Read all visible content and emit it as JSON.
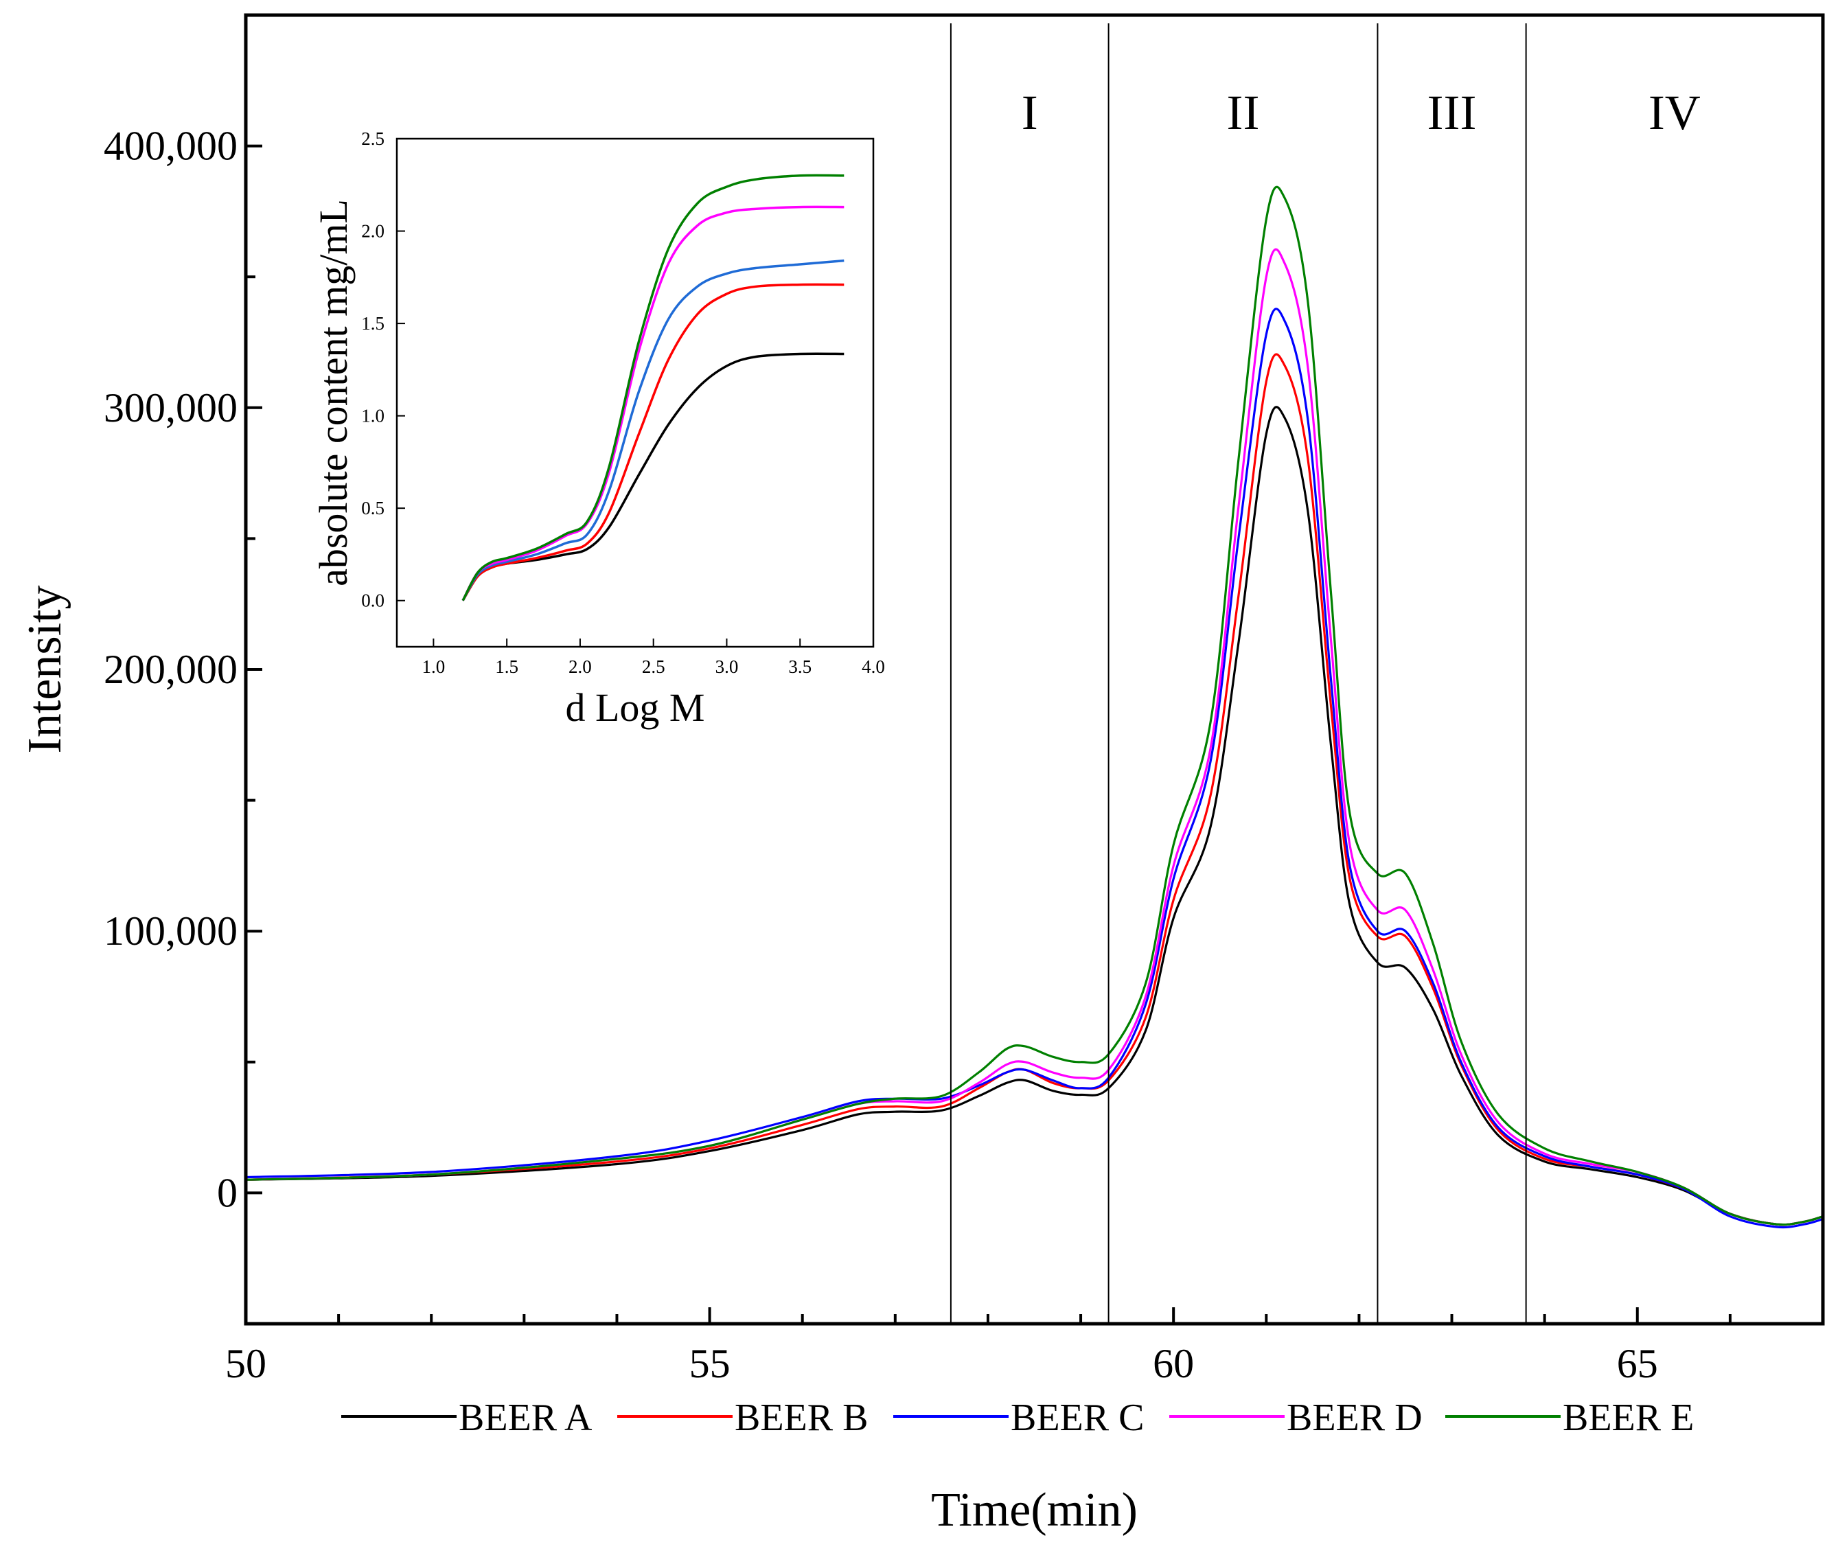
{
  "chart_data": [
    {
      "type": "line",
      "role": "main",
      "xlabel": "Time(min)",
      "ylabel": "Intensity",
      "xlim": [
        50,
        67
      ],
      "ylim": [
        -50000,
        450000
      ],
      "x_ticks": [
        50,
        55,
        60,
        65
      ],
      "x_tick_labels": [
        "50",
        "55",
        "60",
        "65"
      ],
      "y_ticks": [
        0,
        100000,
        200000,
        300000,
        400000
      ],
      "y_tick_labels": [
        "0",
        "100,000",
        "200,000",
        "300,000",
        "400,000"
      ],
      "grid": false,
      "legend_position": "bottom",
      "regions": [
        {
          "label": "I",
          "x_from": 57.6,
          "x_to": 59.3
        },
        {
          "label": "II",
          "x_from": 59.3,
          "x_to": 62.2
        },
        {
          "label": "III",
          "x_from": 62.2,
          "x_to": 63.8
        },
        {
          "label": "IV",
          "x_from": 63.8,
          "x_to": 67
        }
      ],
      "region_dividers": [
        57.6,
        59.3,
        62.2,
        63.8
      ],
      "series": [
        {
          "name": "BEER A",
          "color": "#000000",
          "x": [
            50,
            52,
            54,
            55,
            56,
            56.6,
            57.0,
            57.5,
            57.9,
            58.2,
            58.4,
            58.7,
            59.0,
            59.3,
            59.7,
            60.0,
            60.4,
            60.7,
            61.0,
            61.2,
            61.45,
            61.7,
            61.9,
            62.2,
            62.5,
            62.8,
            63.1,
            63.5,
            64.0,
            64.5,
            65.0,
            65.5,
            66.0,
            66.5,
            66.8,
            67.0
          ],
          "y": [
            5000,
            6500,
            11000,
            16000,
            24000,
            30000,
            31000,
            31500,
            37000,
            42000,
            43000,
            39000,
            37500,
            40000,
            62000,
            105000,
            140000,
            210000,
            290000,
            296000,
            260000,
            170000,
            110000,
            88000,
            86000,
            70000,
            45000,
            22000,
            12000,
            9000,
            6000,
            1000,
            -8000,
            -12000,
            -11000,
            -9000
          ]
        },
        {
          "name": "BEER B",
          "color": "#ff0000",
          "x": [
            50,
            52,
            54,
            55,
            56,
            56.6,
            57.0,
            57.5,
            57.9,
            58.2,
            58.4,
            58.7,
            59.0,
            59.3,
            59.7,
            60.0,
            60.4,
            60.7,
            61.0,
            61.2,
            61.45,
            61.7,
            61.9,
            62.2,
            62.5,
            62.8,
            63.1,
            63.5,
            64.0,
            64.5,
            65.0,
            65.5,
            66.0,
            66.5,
            66.8,
            67.0
          ],
          "y": [
            5000,
            7000,
            12000,
            17000,
            26000,
            32000,
            33000,
            33000,
            40000,
            46000,
            47000,
            42000,
            40000,
            43000,
            67000,
            112000,
            152000,
            228000,
            310000,
            316000,
            280000,
            185000,
            120000,
            98000,
            98000,
            78000,
            49000,
            24000,
            13000,
            10000,
            7000,
            1500,
            -8000,
            -12000,
            -11000,
            -9000
          ]
        },
        {
          "name": "BEER C",
          "color": "#0000ff",
          "x": [
            50,
            52,
            54,
            55,
            56,
            56.6,
            57.0,
            57.5,
            57.9,
            58.2,
            58.4,
            58.7,
            59.0,
            59.3,
            59.7,
            60.0,
            60.4,
            60.7,
            61.0,
            61.2,
            61.45,
            61.7,
            61.9,
            62.2,
            62.5,
            62.8,
            63.1,
            63.5,
            64.0,
            64.5,
            65.0,
            65.5,
            66.0,
            66.5,
            66.8,
            67.0
          ],
          "y": [
            6000,
            8000,
            14000,
            20000,
            29000,
            35000,
            36000,
            36000,
            41000,
            46000,
            47000,
            43000,
            40000,
            44000,
            72000,
            120000,
            165000,
            250000,
            328000,
            333000,
            295000,
            195000,
            125000,
            100000,
            100000,
            80000,
            50000,
            25000,
            14000,
            10000,
            7000,
            1500,
            -9000,
            -13000,
            -12000,
            -10000
          ]
        },
        {
          "name": "BEER D",
          "color": "#ff00ff",
          "x": [
            50,
            52,
            54,
            55,
            56,
            56.6,
            57.0,
            57.5,
            57.9,
            58.2,
            58.4,
            58.7,
            59.0,
            59.3,
            59.7,
            60.0,
            60.4,
            60.7,
            61.0,
            61.2,
            61.45,
            61.7,
            61.9,
            62.2,
            62.5,
            62.8,
            63.1,
            63.5,
            64.0,
            64.5,
            65.0,
            65.5,
            66.0,
            66.5,
            66.8,
            67.0
          ],
          "y": [
            5000,
            7000,
            13000,
            18000,
            28000,
            34000,
            35000,
            35000,
            42000,
            49000,
            50000,
            46000,
            44000,
            47000,
            75000,
            125000,
            170000,
            262000,
            350000,
            355000,
            315000,
            210000,
            133000,
            108000,
            108000,
            85000,
            53000,
            27000,
            15000,
            11000,
            8000,
            2000,
            -8000,
            -12000,
            -11000,
            -9000
          ]
        },
        {
          "name": "BEER E",
          "color": "#008000",
          "x": [
            50,
            52,
            54,
            55,
            56,
            56.6,
            57.0,
            57.5,
            57.9,
            58.2,
            58.4,
            58.7,
            59.0,
            59.3,
            59.7,
            60.0,
            60.4,
            60.7,
            61.0,
            61.2,
            61.45,
            61.7,
            61.9,
            62.2,
            62.5,
            62.8,
            63.1,
            63.5,
            64.0,
            64.5,
            65.0,
            65.5,
            66.0,
            66.5,
            66.8,
            67.0
          ],
          "y": [
            5000,
            7000,
            13000,
            18000,
            28000,
            34000,
            36000,
            37000,
            46000,
            55000,
            56000,
            52000,
            50000,
            53000,
            80000,
            133000,
            180000,
            280000,
            372000,
            380000,
            340000,
            228000,
            145000,
            122000,
            122000,
            95000,
            58000,
            30000,
            17000,
            12000,
            8000,
            2000,
            -8000,
            -12000,
            -11000,
            -9000
          ]
        }
      ]
    },
    {
      "type": "line",
      "role": "inset",
      "xlabel": "d Log M",
      "ylabel": "absolute content mg/mL",
      "xlim": [
        0.75,
        4.0
      ],
      "ylim": [
        -0.25,
        2.5
      ],
      "x_ticks": [
        1.0,
        1.5,
        2.0,
        2.5,
        3.0,
        3.5,
        4.0
      ],
      "x_tick_labels": [
        "1.0",
        "1.5",
        "2.0",
        "2.5",
        "3.0",
        "3.5",
        "4.0"
      ],
      "y_ticks": [
        0.0,
        0.5,
        1.0,
        1.5,
        2.0,
        2.5
      ],
      "y_tick_labels": [
        "0.0",
        "0.5",
        "1.0",
        "1.5",
        "2.0",
        "2.5"
      ],
      "grid": false,
      "series": [
        {
          "name": "BEER A",
          "color": "#000000",
          "x": [
            1.2,
            1.3,
            1.4,
            1.5,
            1.7,
            1.9,
            2.05,
            2.2,
            2.4,
            2.6,
            2.8,
            3.0,
            3.2,
            3.5,
            3.8
          ],
          "y": [
            0.0,
            0.13,
            0.18,
            0.2,
            0.22,
            0.25,
            0.28,
            0.4,
            0.68,
            0.95,
            1.15,
            1.27,
            1.32,
            1.335,
            1.335
          ]
        },
        {
          "name": "BEER B",
          "color": "#ff0000",
          "x": [
            1.2,
            1.3,
            1.4,
            1.5,
            1.7,
            1.9,
            2.05,
            2.2,
            2.4,
            2.6,
            2.8,
            3.0,
            3.2,
            3.5,
            3.8
          ],
          "y": [
            0.0,
            0.13,
            0.18,
            0.2,
            0.23,
            0.27,
            0.31,
            0.48,
            0.9,
            1.3,
            1.55,
            1.66,
            1.7,
            1.71,
            1.71
          ]
        },
        {
          "name": "BEER C",
          "color": "#1f6bd6",
          "x": [
            1.2,
            1.3,
            1.4,
            1.5,
            1.7,
            1.9,
            2.05,
            2.2,
            2.4,
            2.6,
            2.8,
            3.0,
            3.2,
            3.5,
            3.8
          ],
          "y": [
            0.0,
            0.14,
            0.19,
            0.21,
            0.25,
            0.31,
            0.36,
            0.6,
            1.13,
            1.52,
            1.7,
            1.77,
            1.8,
            1.82,
            1.84
          ]
        },
        {
          "name": "BEER D",
          "color": "#ff00ff",
          "x": [
            1.2,
            1.3,
            1.4,
            1.5,
            1.7,
            1.9,
            2.05,
            2.2,
            2.4,
            2.6,
            2.8,
            3.0,
            3.2,
            3.5,
            3.8
          ],
          "y": [
            0.0,
            0.15,
            0.2,
            0.22,
            0.27,
            0.35,
            0.42,
            0.7,
            1.35,
            1.82,
            2.03,
            2.1,
            2.12,
            2.13,
            2.13
          ]
        },
        {
          "name": "BEER E",
          "color": "#008000",
          "x": [
            1.2,
            1.3,
            1.4,
            1.5,
            1.7,
            1.9,
            2.05,
            2.2,
            2.4,
            2.6,
            2.8,
            3.0,
            3.2,
            3.5,
            3.8
          ],
          "y": [
            0.0,
            0.15,
            0.21,
            0.23,
            0.28,
            0.36,
            0.43,
            0.73,
            1.4,
            1.9,
            2.15,
            2.24,
            2.28,
            2.3,
            2.3
          ]
        }
      ]
    }
  ]
}
